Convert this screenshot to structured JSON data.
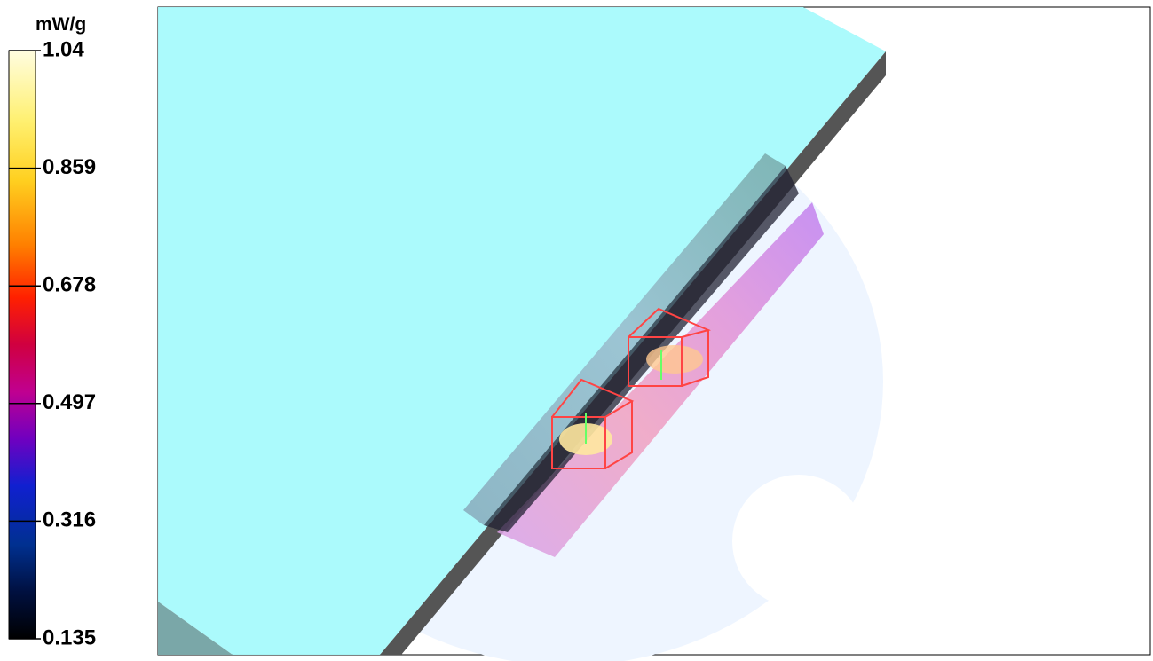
{
  "colorbar": {
    "unit": "mW/g",
    "ticks": [
      1.04,
      0.859,
      0.678,
      0.497,
      0.316,
      0.135
    ]
  }
}
